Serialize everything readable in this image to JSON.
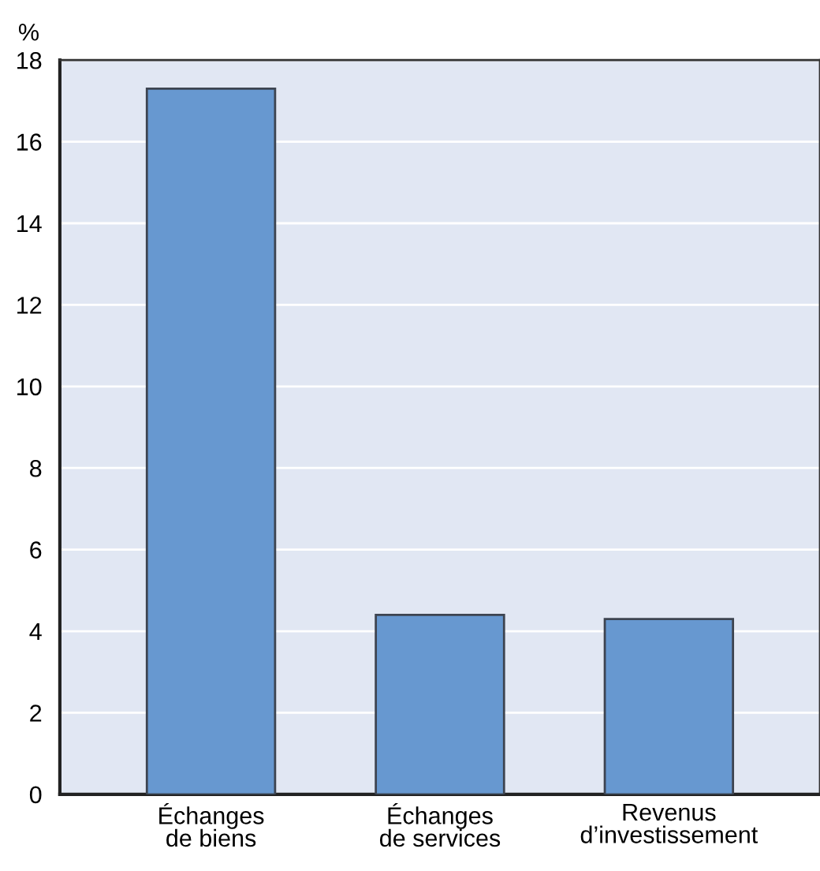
{
  "chart_data": {
    "type": "bar",
    "ylabel": "%",
    "categories": [
      "Échanges\nde biens",
      "Échanges\nde services",
      "Revenus\nd’investissement"
    ],
    "values": [
      17.3,
      4.4,
      4.3
    ],
    "color": "#6798d0",
    "ylim": [
      0,
      18
    ],
    "yticks": [
      0,
      2,
      4,
      6,
      8,
      10,
      12,
      14,
      16,
      18
    ],
    "grid": "y"
  }
}
